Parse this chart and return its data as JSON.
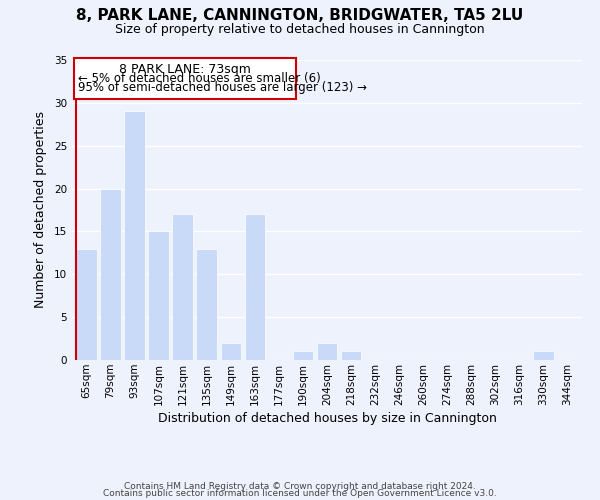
{
  "title": "8, PARK LANE, CANNINGTON, BRIDGWATER, TA5 2LU",
  "subtitle": "Size of property relative to detached houses in Cannington",
  "xlabel": "Distribution of detached houses by size in Cannington",
  "ylabel": "Number of detached properties",
  "bin_labels": [
    "65sqm",
    "79sqm",
    "93sqm",
    "107sqm",
    "121sqm",
    "135sqm",
    "149sqm",
    "163sqm",
    "177sqm",
    "190sqm",
    "204sqm",
    "218sqm",
    "232sqm",
    "246sqm",
    "260sqm",
    "274sqm",
    "288sqm",
    "302sqm",
    "316sqm",
    "330sqm",
    "344sqm"
  ],
  "bar_heights": [
    13,
    20,
    29,
    15,
    17,
    13,
    2,
    17,
    0,
    1,
    2,
    1,
    0,
    0,
    0,
    0,
    0,
    0,
    0,
    1,
    0
  ],
  "bar_color": "#c9daf8",
  "highlight_color": "#cc0000",
  "ylim": [
    0,
    35
  ],
  "yticks": [
    0,
    5,
    10,
    15,
    20,
    25,
    30,
    35
  ],
  "annotation_title": "8 PARK LANE: 73sqm",
  "annotation_line1": "← 5% of detached houses are smaller (6)",
  "annotation_line2": "95% of semi-detached houses are larger (123) →",
  "footer1": "Contains HM Land Registry data © Crown copyright and database right 2024.",
  "footer2": "Contains public sector information licensed under the Open Government Licence v3.0.",
  "background_color": "#eef2fc",
  "grid_color": "#ffffff",
  "box_facecolor": "#ffffff",
  "box_edgecolor": "#cc0000",
  "title_fontsize": 11,
  "subtitle_fontsize": 9,
  "ylabel_fontsize": 9,
  "xlabel_fontsize": 9,
  "tick_fontsize": 7.5,
  "footer_fontsize": 6.5
}
